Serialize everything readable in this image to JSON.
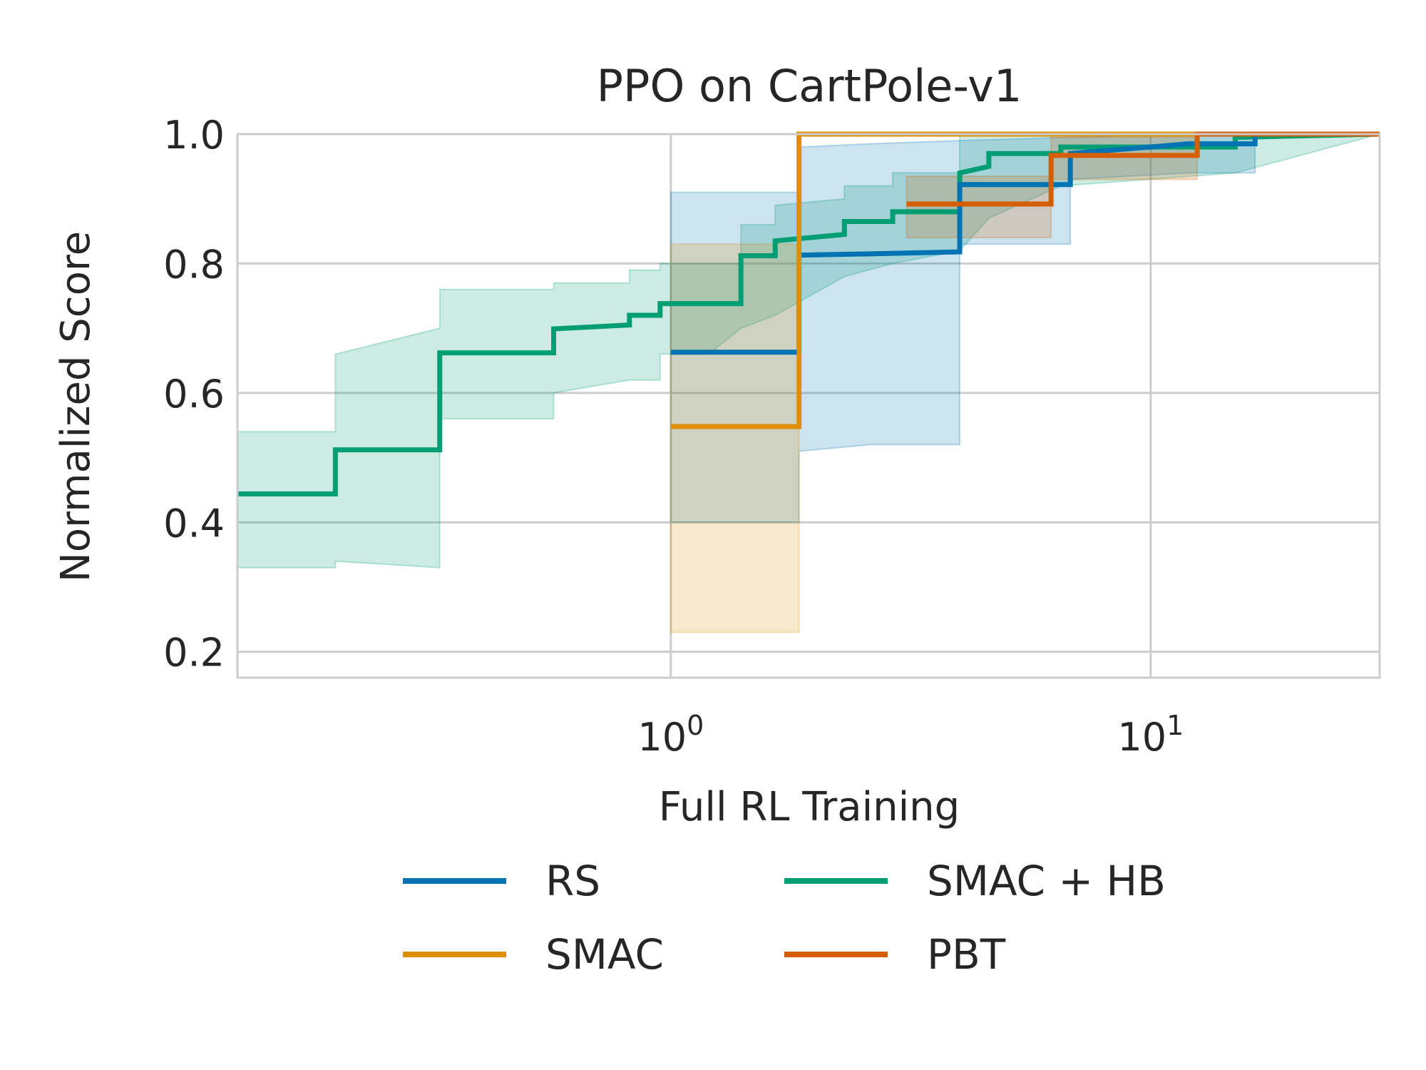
{
  "chart_data": {
    "type": "line",
    "title": "PPO on CartPole-v1",
    "xlabel": "Full RL Training",
    "ylabel": "Normalized Score",
    "x_scale": "log",
    "xlim": [
      0.125,
      30
    ],
    "ylim": [
      0.16,
      1.0
    ],
    "grid": true,
    "legend_position": "bottom-center",
    "y_ticks": [
      "0.2",
      "0.4",
      "0.6",
      "0.8",
      "1.0"
    ],
    "y_tick_values": [
      0.2,
      0.4,
      0.6,
      0.8,
      1.0
    ],
    "x_ticks": [
      {
        "value": 1,
        "base": "10",
        "exp": "0"
      },
      {
        "value": 10,
        "base": "10",
        "exp": "1"
      }
    ],
    "series": [
      {
        "name": "RS",
        "color": "#0173b2",
        "x": [
          1.0,
          1.85,
          1.85,
          2.6,
          4.0,
          4.0,
          6.8,
          6.8,
          12.0,
          16.5,
          16.5,
          30
        ],
        "y": [
          0.663,
          0.663,
          0.813,
          0.815,
          0.818,
          0.922,
          0.922,
          0.97,
          0.985,
          0.985,
          1.0,
          1.0
        ],
        "band_low": [
          0.4,
          0.4,
          0.51,
          0.52,
          0.52,
          0.83,
          0.83,
          0.93,
          0.94,
          0.94,
          1.0,
          1.0
        ],
        "band_high": [
          0.91,
          0.91,
          0.98,
          0.985,
          0.99,
          0.99,
          0.995,
          0.995,
          1.0,
          1.0,
          1.0,
          1.0
        ]
      },
      {
        "name": "SMAC",
        "color": "#de8f05",
        "x": [
          1.0,
          1.85,
          1.85,
          30
        ],
        "y": [
          0.548,
          0.548,
          1.0,
          1.0
        ],
        "band_low": [
          0.23,
          0.23,
          1.0,
          1.0
        ],
        "band_high": [
          0.83,
          0.83,
          1.0,
          1.0
        ]
      },
      {
        "name": "SMAC + HB",
        "color": "#029e73",
        "x": [
          0.125,
          0.2,
          0.2,
          0.33,
          0.33,
          0.57,
          0.57,
          0.82,
          0.82,
          0.95,
          0.95,
          1.2,
          1.4,
          1.4,
          1.65,
          1.65,
          2.3,
          2.3,
          2.9,
          2.9,
          4.0,
          4.0,
          4.6,
          4.6,
          6.5,
          6.5,
          15.0,
          15.0,
          30
        ],
        "y": [
          0.444,
          0.444,
          0.512,
          0.512,
          0.662,
          0.662,
          0.699,
          0.705,
          0.72,
          0.72,
          0.738,
          0.738,
          0.738,
          0.812,
          0.812,
          0.835,
          0.845,
          0.865,
          0.865,
          0.88,
          0.88,
          0.94,
          0.95,
          0.97,
          0.97,
          0.98,
          0.98,
          0.995,
          1.0
        ],
        "band_low": [
          0.33,
          0.33,
          0.34,
          0.33,
          0.56,
          0.56,
          0.6,
          0.62,
          0.62,
          0.62,
          0.66,
          0.66,
          0.7,
          0.7,
          0.72,
          0.72,
          0.78,
          0.78,
          0.8,
          0.8,
          0.82,
          0.82,
          0.87,
          0.87,
          0.92,
          0.92,
          0.94,
          0.94,
          1.0
        ],
        "band_high": [
          0.54,
          0.54,
          0.66,
          0.7,
          0.76,
          0.76,
          0.77,
          0.77,
          0.79,
          0.79,
          0.8,
          0.8,
          0.8,
          0.86,
          0.86,
          0.89,
          0.9,
          0.92,
          0.92,
          0.94,
          0.94,
          1.0,
          1.0,
          1.0,
          1.0,
          1.0,
          1.0,
          1.0,
          1.0
        ]
      },
      {
        "name": "PBT",
        "color": "#d55e00",
        "x": [
          3.1,
          6.2,
          6.2,
          12.5,
          12.5,
          30
        ],
        "y": [
          0.892,
          0.892,
          0.967,
          0.967,
          1.0,
          1.0
        ],
        "band_low": [
          0.84,
          0.84,
          0.93,
          0.93,
          1.0,
          1.0
        ],
        "band_high": [
          0.935,
          0.935,
          0.995,
          0.995,
          1.0,
          1.0
        ]
      }
    ]
  }
}
